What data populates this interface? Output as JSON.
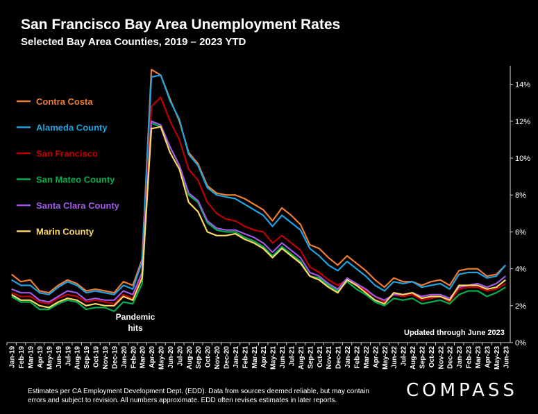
{
  "chart_data": {
    "type": "line",
    "title": "San Francisco Bay Area Unemployment Rates",
    "subtitle": "Selected Bay Area Counties, 2019 – 2023 YTD",
    "y_axis_side": "right",
    "ylim": [
      0,
      15
    ],
    "yticks": [
      0,
      2,
      4,
      6,
      8,
      10,
      12,
      14
    ],
    "ytick_labels": [
      "0%",
      "2%",
      "4%",
      "6%",
      "8%",
      "10%",
      "12%",
      "14%"
    ],
    "x_tick_labels": [
      "Jan-19",
      "Feb-19",
      "Mar-19",
      "Apr-19",
      "May-19",
      "Jun-19",
      "Jul-19",
      "Aug-19",
      "Sep-19",
      "Oct-19",
      "Nov-19",
      "Dec-19",
      "Jan-20",
      "Feb-20",
      "Mar-20",
      "Apr-20",
      "May-20",
      "Jun-20",
      "Jul-20",
      "Aug-20",
      "Sep-20",
      "Oct-20",
      "Nov-20",
      "Dec-20",
      "Jan-21",
      "Feb-21",
      "Mar-21",
      "Apr-21",
      "May-21",
      "Jun-21",
      "Jul-21",
      "Aug-21",
      "Sep-21",
      "Oct-21",
      "Nov-21",
      "Dec-21",
      "Jan-22",
      "Feb-22",
      "Mar-22",
      "Apr-22",
      "May-22",
      "Jun-22",
      "Jul-22",
      "Aug-22",
      "Sep-22",
      "Oct-22",
      "Nov-22",
      "Dec-22",
      "Jan-23",
      "Feb-23",
      "Mar-23",
      "Apr-23",
      "May-23",
      "Jun-23"
    ],
    "x": [
      "Jan-19",
      "Feb-19",
      "Mar-19",
      "Apr-19",
      "May-19",
      "Jun-19",
      "Jul-19",
      "Aug-19",
      "Sep-19",
      "Oct-19",
      "Nov-19",
      "Dec-19",
      "Jan-20",
      "Feb-20",
      "Mar-20",
      "Apr-20",
      "May-20",
      "Jun-20",
      "Jul-20",
      "Aug-20",
      "Sep-20",
      "Oct-20",
      "Nov-20",
      "Dec-20",
      "Jan-21",
      "Feb-21",
      "Mar-21",
      "Apr-21",
      "May-21",
      "Jun-21",
      "Jul-21",
      "Aug-21",
      "Sep-21",
      "Oct-21",
      "Nov-21",
      "Dec-21",
      "Jan-22",
      "Feb-22",
      "Mar-22",
      "Apr-22",
      "May-22",
      "Jun-22",
      "Jul-22",
      "Aug-22",
      "Sep-22",
      "Oct-22",
      "Nov-22",
      "Dec-22",
      "Jan-23",
      "Feb-23",
      "Mar-23",
      "Apr-23",
      "May-23",
      "Jun-23"
    ],
    "legend_position": "top-left",
    "series": [
      {
        "name": "Contra Costa",
        "color": "#ED7D31",
        "values": [
          3.7,
          3.3,
          3.4,
          2.8,
          2.7,
          3.1,
          3.4,
          3.2,
          2.8,
          2.9,
          2.8,
          2.7,
          3.3,
          3.1,
          4.5,
          14.8,
          14.5,
          13.2,
          12.0,
          10.3,
          9.7,
          8.5,
          8.1,
          8.0,
          8.0,
          7.8,
          7.5,
          7.2,
          6.6,
          7.3,
          6.9,
          6.4,
          5.3,
          5.1,
          4.6,
          4.2,
          4.7,
          4.3,
          3.9,
          3.4,
          3.0,
          3.5,
          3.3,
          3.3,
          3.1,
          3.3,
          3.4,
          3.1,
          3.9,
          4.0,
          4.0,
          3.6,
          3.7,
          4.2
        ]
      },
      {
        "name": "Alameda County",
        "color": "#1FA2E0",
        "values": [
          3.4,
          3.1,
          3.1,
          2.7,
          2.6,
          3.0,
          3.3,
          3.1,
          2.7,
          2.8,
          2.7,
          2.6,
          3.1,
          2.9,
          4.4,
          14.4,
          14.5,
          13.1,
          12.1,
          10.2,
          9.6,
          8.4,
          8.0,
          7.9,
          7.8,
          7.5,
          7.2,
          6.9,
          6.3,
          6.9,
          6.5,
          6.1,
          5.1,
          4.7,
          4.2,
          3.9,
          4.4,
          4.0,
          3.6,
          3.1,
          2.8,
          3.3,
          3.2,
          3.3,
          3.0,
          3.1,
          3.2,
          2.9,
          3.7,
          3.8,
          3.8,
          3.5,
          3.6,
          4.2
        ]
      },
      {
        "name": "San Francisco",
        "color": "#C00000",
        "values": [
          2.7,
          2.5,
          2.5,
          2.2,
          2.1,
          2.4,
          2.6,
          2.5,
          2.2,
          2.3,
          2.2,
          2.1,
          2.6,
          2.4,
          3.7,
          12.8,
          13.3,
          12.0,
          11.0,
          9.4,
          8.8,
          7.6,
          7.0,
          6.7,
          6.6,
          6.3,
          6.1,
          6.0,
          5.4,
          5.8,
          5.4,
          5.0,
          4.1,
          3.8,
          3.4,
          3.1,
          3.4,
          3.1,
          2.8,
          2.5,
          2.2,
          2.6,
          2.5,
          2.6,
          2.3,
          2.4,
          2.5,
          2.2,
          2.9,
          3.0,
          3.0,
          2.8,
          2.9,
          3.2
        ]
      },
      {
        "name": "San Mateo County",
        "color": "#00B050",
        "values": [
          2.5,
          2.2,
          2.2,
          1.8,
          1.8,
          2.1,
          2.3,
          2.2,
          1.8,
          1.9,
          1.9,
          1.7,
          2.2,
          2.1,
          3.2,
          11.9,
          11.7,
          10.6,
          9.6,
          8.0,
          7.6,
          6.5,
          6.1,
          6.0,
          6.0,
          5.7,
          5.5,
          5.2,
          4.7,
          5.2,
          4.8,
          4.4,
          3.6,
          3.5,
          3.1,
          2.8,
          3.3,
          2.9,
          2.6,
          2.2,
          2.0,
          2.4,
          2.3,
          2.4,
          2.1,
          2.2,
          2.3,
          2.1,
          2.6,
          2.8,
          2.8,
          2.5,
          2.7,
          3.0
        ]
      },
      {
        "name": "Santa Clara County",
        "color": "#A259E6",
        "values": [
          2.9,
          2.7,
          2.7,
          2.3,
          2.2,
          2.5,
          2.8,
          2.7,
          2.3,
          2.4,
          2.3,
          2.3,
          2.8,
          2.6,
          3.8,
          12.0,
          11.8,
          10.6,
          9.6,
          8.1,
          7.7,
          6.6,
          6.2,
          6.1,
          6.1,
          5.9,
          5.7,
          5.4,
          4.9,
          5.4,
          5.0,
          4.6,
          3.8,
          3.6,
          3.2,
          2.9,
          3.5,
          3.2,
          2.9,
          2.5,
          2.3,
          2.6,
          2.6,
          2.7,
          2.5,
          2.6,
          2.6,
          2.4,
          3.0,
          3.1,
          3.2,
          3.0,
          3.2,
          3.6
        ]
      },
      {
        "name": "Marin County",
        "color": "#FFD966",
        "values": [
          2.6,
          2.3,
          2.3,
          2.0,
          1.9,
          2.2,
          2.4,
          2.3,
          2.0,
          2.1,
          2.0,
          2.0,
          2.5,
          2.3,
          3.5,
          11.6,
          11.7,
          10.3,
          9.4,
          7.6,
          7.1,
          6.0,
          5.8,
          5.8,
          5.9,
          5.6,
          5.4,
          5.1,
          4.6,
          5.1,
          4.7,
          4.3,
          3.6,
          3.4,
          3.0,
          2.7,
          3.4,
          3.1,
          2.7,
          2.3,
          2.1,
          2.7,
          2.6,
          2.7,
          2.4,
          2.5,
          2.5,
          2.3,
          3.1,
          3.1,
          3.1,
          2.9,
          3.0,
          3.4
        ]
      }
    ],
    "annotations": [
      {
        "text_lines": [
          "Pandemic",
          "hits"
        ],
        "at_x": "Mar-20"
      },
      {
        "text": "Updated through June 2023"
      }
    ]
  },
  "footnote": "Estimates per CA Employment Development Dept. (EDD). Data from sources deemed reliable, but may contain errors and subject to revision. All numbers approximate.  EDD often revises estimates in later reports.",
  "logo_text": "COMPASS"
}
